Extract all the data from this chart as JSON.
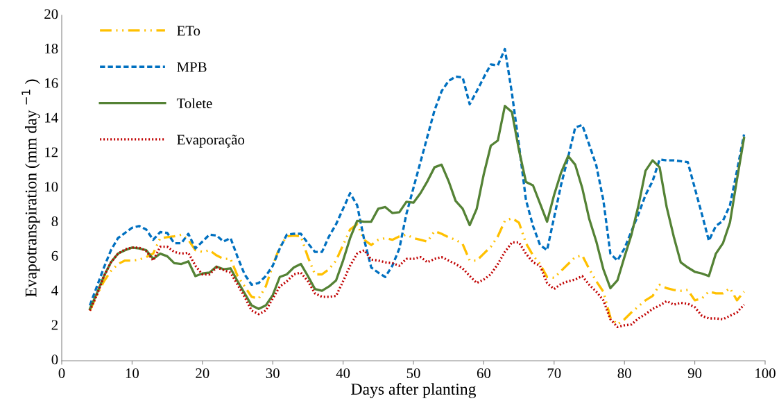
{
  "chart_data": {
    "type": "line",
    "xlabel": "Days after planting",
    "ylabel": "Evapotranspiration (mm day $^{−1}$ )",
    "x": [
      4,
      5,
      6,
      7,
      8,
      9,
      10,
      11,
      12,
      13,
      14,
      15,
      16,
      17,
      18,
      19,
      20,
      21,
      22,
      23,
      24,
      25,
      26,
      27,
      28,
      29,
      30,
      31,
      32,
      33,
      34,
      35,
      36,
      37,
      38,
      39,
      40,
      41,
      42,
      43,
      44,
      45,
      46,
      47,
      48,
      49,
      50,
      51,
      52,
      53,
      54,
      55,
      56,
      57,
      58,
      59,
      60,
      61,
      62,
      63,
      64,
      65,
      66,
      67,
      68,
      69,
      70,
      71,
      72,
      73,
      74,
      75,
      76,
      77,
      78,
      79,
      80,
      81,
      82,
      83,
      84,
      85,
      86,
      87,
      88,
      89,
      90,
      91,
      92,
      93,
      94,
      95,
      96,
      97
    ],
    "xlim": [
      0,
      100
    ],
    "xticks": [
      0,
      10,
      20,
      30,
      40,
      50,
      60,
      70,
      80,
      90,
      100
    ],
    "ylim": [
      0,
      20
    ],
    "yticks": [
      0,
      2,
      4,
      6,
      8,
      10,
      12,
      14,
      16,
      18,
      20
    ],
    "grid": false,
    "legend": "top left",
    "marker": "none",
    "series": [
      {
        "name": "ETo",
        "color": "#ffc000",
        "line_style": "dashdot",
        "values": [
          2.9,
          3.8,
          4.6,
          5.2,
          5.6,
          5.8,
          5.8,
          5.85,
          6.0,
          6.2,
          7.1,
          7.15,
          7.2,
          7.3,
          7.0,
          6.4,
          6.3,
          6.4,
          6.1,
          5.9,
          5.9,
          4.9,
          4.3,
          3.7,
          3.6,
          4.3,
          5.5,
          6.6,
          7.2,
          7.25,
          7.2,
          6.0,
          5.0,
          5.0,
          5.3,
          5.8,
          6.7,
          7.6,
          7.9,
          7.0,
          6.7,
          7.0,
          7.1,
          7.0,
          7.2,
          7.3,
          7.1,
          7.0,
          6.9,
          7.5,
          7.35,
          7.15,
          7.0,
          6.75,
          5.8,
          5.8,
          6.2,
          6.6,
          7.2,
          8.1,
          8.25,
          8.0,
          6.8,
          6.1,
          5.6,
          4.85,
          4.8,
          5.2,
          5.6,
          6.0,
          6.1,
          5.3,
          4.6,
          4.0,
          2.5,
          2.1,
          2.4,
          2.8,
          3.15,
          3.5,
          3.75,
          4.4,
          4.2,
          4.1,
          4.05,
          4.1,
          3.5,
          3.6,
          4.0,
          3.9,
          3.9,
          4.2,
          3.5,
          4.0
        ]
      },
      {
        "name": "MPB",
        "color": "#0070c0",
        "line_style": "dashed",
        "values": [
          3.2,
          4.3,
          5.4,
          6.4,
          7.1,
          7.4,
          7.7,
          7.8,
          7.6,
          7.0,
          7.45,
          7.4,
          6.8,
          6.8,
          7.35,
          6.5,
          6.9,
          7.3,
          7.25,
          6.9,
          7.1,
          6.0,
          5.0,
          4.4,
          4.5,
          4.9,
          5.5,
          6.5,
          7.3,
          7.35,
          7.35,
          6.8,
          6.3,
          6.3,
          7.2,
          7.9,
          8.8,
          9.7,
          9.0,
          7.0,
          5.4,
          5.1,
          4.85,
          5.5,
          6.5,
          8.5,
          10.0,
          11.5,
          13.0,
          14.5,
          15.6,
          16.2,
          16.45,
          16.4,
          14.85,
          15.6,
          16.4,
          17.15,
          17.1,
          18.05,
          15.5,
          12.5,
          9.3,
          7.8,
          6.7,
          6.4,
          8.3,
          10.2,
          11.8,
          13.5,
          13.65,
          12.5,
          11.3,
          9.3,
          6.2,
          5.8,
          6.5,
          7.5,
          8.5,
          9.6,
          10.4,
          11.65,
          11.6,
          11.6,
          11.55,
          11.5,
          10.0,
          8.5,
          6.95,
          7.8,
          8.1,
          9.0,
          11.0,
          13.1
        ]
      },
      {
        "name": "Tolete",
        "color": "#548235",
        "line_style": "solid",
        "values": [
          3.0,
          3.9,
          4.9,
          5.7,
          6.2,
          6.4,
          6.55,
          6.5,
          6.4,
          5.9,
          6.2,
          6.05,
          5.65,
          5.6,
          5.75,
          4.9,
          5.05,
          5.1,
          5.45,
          5.3,
          5.35,
          4.6,
          3.9,
          3.2,
          3.0,
          3.2,
          3.8,
          4.85,
          5.0,
          5.4,
          5.6,
          4.9,
          4.15,
          4.05,
          4.3,
          4.65,
          5.8,
          7.1,
          8.1,
          8.05,
          8.05,
          8.8,
          8.9,
          8.55,
          8.6,
          9.2,
          9.15,
          9.7,
          10.4,
          11.2,
          11.35,
          10.4,
          9.25,
          8.8,
          7.85,
          8.8,
          10.8,
          12.45,
          12.75,
          14.75,
          14.4,
          12.2,
          10.35,
          10.15,
          9.1,
          8.05,
          9.6,
          10.9,
          11.85,
          11.35,
          10.0,
          8.2,
          6.9,
          5.3,
          4.2,
          4.65,
          6.0,
          7.3,
          9.0,
          11.0,
          11.6,
          11.2,
          8.9,
          7.2,
          5.7,
          5.4,
          5.15,
          5.05,
          4.9,
          6.2,
          6.8,
          8.0,
          10.5,
          12.9
        ]
      },
      {
        "name": "Evaporação",
        "color": "#c00000",
        "line_style": "dotted",
        "values": [
          2.9,
          3.8,
          4.9,
          5.7,
          6.2,
          6.45,
          6.55,
          6.55,
          6.35,
          5.8,
          6.6,
          6.6,
          6.3,
          6.2,
          6.25,
          5.5,
          5.0,
          5.0,
          5.4,
          5.25,
          5.1,
          4.4,
          3.7,
          2.9,
          2.7,
          2.9,
          3.6,
          4.3,
          4.6,
          5.0,
          5.1,
          4.6,
          3.9,
          3.7,
          3.7,
          3.75,
          4.6,
          5.5,
          6.2,
          6.4,
          5.85,
          5.8,
          5.7,
          5.65,
          5.5,
          5.9,
          5.9,
          6.0,
          5.7,
          5.9,
          6.0,
          5.8,
          5.6,
          5.35,
          4.9,
          4.5,
          4.7,
          5.0,
          5.6,
          6.3,
          6.85,
          6.85,
          6.2,
          5.7,
          5.5,
          4.5,
          4.15,
          4.45,
          4.6,
          4.7,
          4.9,
          4.4,
          4.0,
          3.5,
          2.4,
          1.95,
          2.05,
          2.1,
          2.45,
          2.7,
          3.0,
          3.2,
          3.45,
          3.25,
          3.35,
          3.3,
          3.1,
          2.6,
          2.45,
          2.45,
          2.4,
          2.6,
          2.8,
          3.25
        ]
      }
    ]
  }
}
